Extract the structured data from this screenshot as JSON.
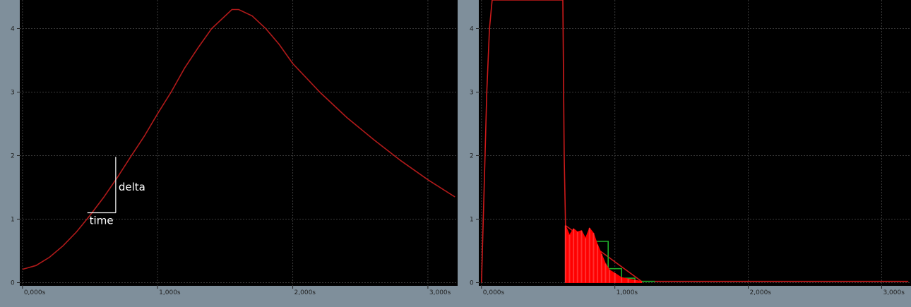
{
  "chart_data": [
    {
      "type": "line",
      "title": "",
      "xlabel": "",
      "ylabel": "",
      "xlim": [
        -0.02,
        3.22
      ],
      "ylim": [
        -0.05,
        4.45
      ],
      "x_ticks": [
        0,
        1,
        2,
        3
      ],
      "x_tick_labels": [
        "0,000s",
        "1,000s",
        "2,000s",
        "3,000s"
      ],
      "y_ticks": [
        0,
        1,
        2,
        3,
        4
      ],
      "y_tick_labels": [
        "0",
        "1",
        "2",
        "3",
        "4"
      ],
      "grid": true,
      "background": "#000000",
      "series": [
        {
          "color": "#b01a1a",
          "x": [
            0,
            0.1,
            0.2,
            0.3,
            0.4,
            0.5,
            0.6,
            0.7,
            0.8,
            0.9,
            1.0,
            1.1,
            1.2,
            1.3,
            1.4,
            1.5,
            1.55,
            1.6,
            1.7,
            1.8,
            1.9,
            2.0,
            2.2,
            2.4,
            2.6,
            2.8,
            3.0,
            3.2
          ],
          "y": [
            0.21,
            0.27,
            0.4,
            0.58,
            0.8,
            1.06,
            1.34,
            1.65,
            1.98,
            2.3,
            2.66,
            3.0,
            3.38,
            3.7,
            4.0,
            4.2,
            4.3,
            4.3,
            4.2,
            4.0,
            3.75,
            3.45,
            3.0,
            2.6,
            2.25,
            1.92,
            1.62,
            1.35
          ]
        }
      ],
      "annotations": {
        "delta_label": "delta",
        "time_label": "time",
        "time_start": 0.48,
        "time_end": 0.69,
        "delta_from": 1.1,
        "delta_to": 1.98
      }
    },
    {
      "type": "line",
      "title": "",
      "xlabel": "",
      "ylabel": "",
      "xlim": [
        -0.02,
        3.22
      ],
      "ylim": [
        -0.05,
        4.45
      ],
      "x_ticks": [
        0,
        1,
        2,
        3
      ],
      "x_tick_labels": [
        "0,000s",
        "1,000s",
        "2,000s",
        "3,000s"
      ],
      "y_ticks": [
        0,
        1,
        2,
        3,
        4
      ],
      "y_tick_labels": [
        "0",
        "1",
        "2",
        "3",
        "4"
      ],
      "grid": true,
      "background": "#000000",
      "series": [
        {
          "color": "#cc1a1a",
          "x": [
            0,
            0.02,
            0.04,
            0.06,
            0.08,
            0.1,
            0.12,
            0.6,
            0.61,
            0.62,
            0.63,
            1.2,
            2.0,
            3.2
          ],
          "y": [
            0,
            1.5,
            3.0,
            4.0,
            4.45,
            4.45,
            4.45,
            4.45,
            4.45,
            2.0,
            0.9,
            0.02,
            0.02,
            0.02
          ]
        },
        {
          "color": "#1fb02a",
          "x": [
            0.85,
            0.95,
            0.95,
            1.05,
            1.05,
            1.15,
            1.15,
            1.3
          ],
          "y": [
            0.65,
            0.65,
            0.22,
            0.22,
            0.07,
            0.07,
            0.02,
            0.02
          ]
        },
        {
          "color": "#ff0000",
          "type": "filled-noise",
          "x": [
            0.63,
            0.66,
            0.69,
            0.72,
            0.75,
            0.78,
            0.81,
            0.84,
            0.87,
            0.9,
            0.93,
            0.96,
            1.0,
            1.05,
            1.1,
            1.15,
            1.2
          ],
          "y": [
            0.9,
            0.75,
            0.85,
            0.8,
            0.82,
            0.7,
            0.86,
            0.78,
            0.6,
            0.45,
            0.3,
            0.2,
            0.15,
            0.08,
            0.06,
            0.04,
            0.02
          ]
        }
      ]
    }
  ]
}
